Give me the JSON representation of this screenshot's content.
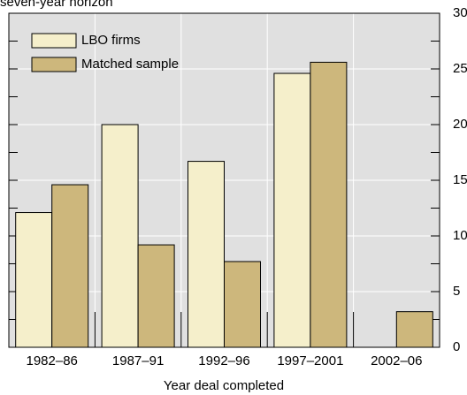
{
  "chart_data": {
    "type": "bar",
    "title": "seven-year horizon",
    "x_label": "Year deal completed",
    "categories": [
      "1982–86",
      "1987–91",
      "1992–96",
      "1997–2001",
      "2002–06"
    ],
    "series": [
      {
        "name": "LBO firms",
        "color": "#f5efcb",
        "values": [
          12.1,
          20,
          16.7,
          24.6,
          null
        ]
      },
      {
        "name": "Matched sample",
        "color": "#cdb77c",
        "values": [
          14.6,
          9.2,
          7.7,
          25.6,
          3.2
        ]
      }
    ],
    "ylim": [
      0,
      30
    ],
    "yticks": [
      0,
      5,
      10,
      15,
      20,
      25,
      30
    ],
    "grid": true,
    "legend": "top-left"
  }
}
